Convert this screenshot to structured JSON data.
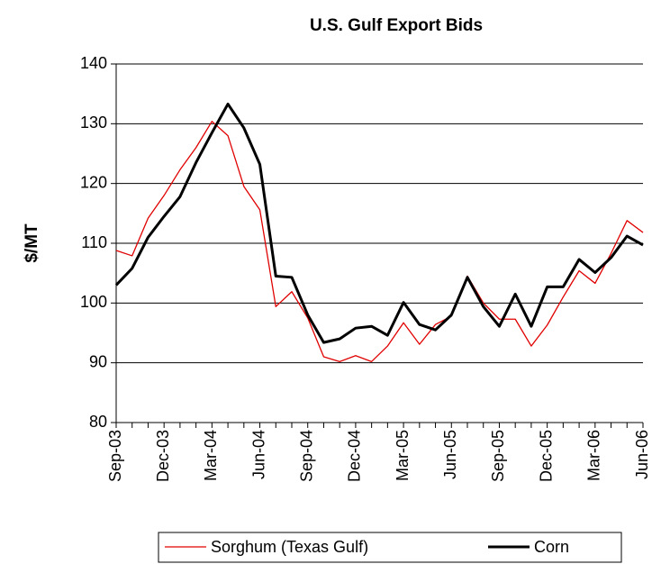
{
  "chart_data": {
    "type": "line",
    "title": "U.S. Gulf Export Bids",
    "y_label": "$/MT",
    "categories": [
      "Sep-03",
      null,
      null,
      "Dec-03",
      null,
      null,
      "Mar-04",
      null,
      null,
      "Jun-04",
      null,
      null,
      "Sep-04",
      null,
      null,
      "Dec-04",
      null,
      null,
      "Mar-05",
      null,
      null,
      "Jun-05",
      null,
      null,
      "Sep-05",
      null,
      null,
      "Dec-05",
      null,
      null,
      "Mar-06",
      null,
      null,
      "Jun-06"
    ],
    "series": [
      {
        "name": "Sorghum (Texas Gulf)",
        "color": "#e00000",
        "width": 1.3,
        "values": [
          108.8,
          107.9,
          114.2,
          118,
          122.3,
          126,
          130.4,
          128,
          119.5,
          115.6,
          99.4,
          101.9,
          97.5,
          91,
          90.2,
          91.2,
          90.2,
          92.8,
          96.7,
          93.1,
          96.4,
          97.8,
          104.5,
          100,
          97.3,
          97.3,
          92.8,
          96.3,
          101,
          105.4,
          103.3,
          108.3,
          113.8,
          111.8
        ]
      },
      {
        "name": "Corn",
        "color": "#000000",
        "width": 3,
        "values": [
          103,
          105.8,
          111,
          114.5,
          117.8,
          123.5,
          128.5,
          133.3,
          129.3,
          123.2,
          104.5,
          104.3,
          98,
          93.4,
          94,
          95.8,
          96.1,
          94.6,
          100.1,
          96.4,
          95.5,
          98,
          104.3,
          99.4,
          96.1,
          101.5,
          96.1,
          102.7,
          102.7,
          107.3,
          105.1,
          107.6,
          111.2,
          109.7
        ]
      }
    ],
    "ylim": [
      80,
      140
    ],
    "yticks": [
      80,
      90,
      100,
      110,
      120,
      130,
      140
    ],
    "grid": true,
    "legend": "bottom"
  }
}
